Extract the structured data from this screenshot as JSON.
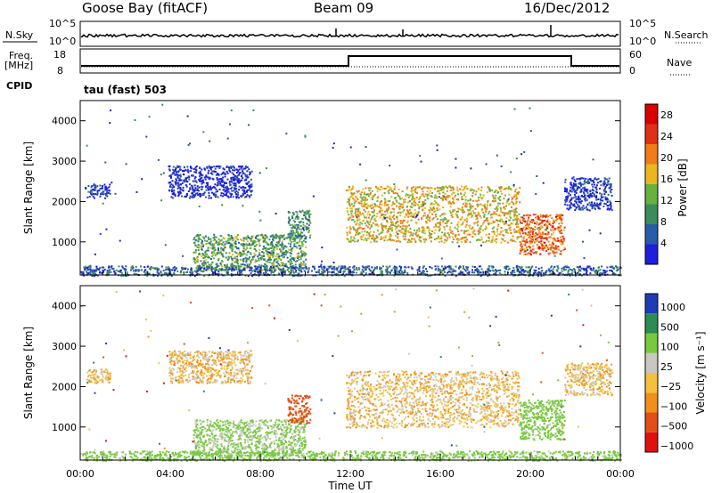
{
  "header": {
    "station": "Goose Bay (fitACF)",
    "beam": "Beam 09",
    "date": "16/Dec/2012"
  },
  "panels": {
    "nsky_label": "N.Sky",
    "nsky_ticks": [
      "10^5",
      "10^0"
    ],
    "nsearch_label": "N.Search",
    "nsearch_ticks": [
      "10^5",
      "10^0"
    ],
    "freq_label_1": "Freq.",
    "freq_label_2": "[MHz]",
    "freq_ticks": [
      "18",
      "8"
    ],
    "nave_label": "Nave",
    "nave_ticks": [
      "60",
      "0"
    ],
    "cpid_label": "CPID",
    "cpid_value": "tau (fast) 503"
  },
  "colors": {
    "power": [
      "#1e1edc",
      "#2a5aa8",
      "#3b8c5a",
      "#68b040",
      "#e8b81e",
      "#f07c1a",
      "#e03018",
      "#d80000"
    ],
    "velocity": [
      "#e01010",
      "#e05018",
      "#f0901c",
      "#f4c040",
      "#c8c8c0",
      "#78c840",
      "#2c8c54",
      "#1e3cb4"
    ]
  },
  "chart_data": [
    {
      "type": "heatmap",
      "title": "",
      "xlabel": "Time UT",
      "ylabel": "Slant Range [km]",
      "xticks": [
        "00:00",
        "04:00",
        "08:00",
        "12:00",
        "16:00",
        "20:00",
        "00:00"
      ],
      "yticks": [
        1000,
        2000,
        3000,
        4000
      ],
      "xlim_hours": [
        0,
        24
      ],
      "ylim_km": [
        180,
        4500
      ],
      "colorbar": {
        "label": "Power [dB]",
        "ticks": [
          "4",
          "8",
          "12",
          "16",
          "20",
          "24",
          "28"
        ],
        "range": [
          0,
          30
        ]
      },
      "regions": [
        {
          "t0": 0.2,
          "t1": 1.3,
          "r0": 2100,
          "r1": 2450,
          "level": 3
        },
        {
          "t0": 3.9,
          "t1": 7.6,
          "r0": 2100,
          "r1": 2900,
          "level": 2
        },
        {
          "t0": 5.0,
          "t1": 10.0,
          "r0": 300,
          "r1": 1200,
          "level": 11
        },
        {
          "t0": 9.2,
          "t1": 10.2,
          "r0": 1100,
          "r1": 1800,
          "level": 9
        },
        {
          "t0": 11.8,
          "t1": 19.5,
          "r0": 1000,
          "r1": 2400,
          "level": 17
        },
        {
          "t0": 19.5,
          "t1": 21.5,
          "r0": 700,
          "r1": 1700,
          "level": 22
        },
        {
          "t0": 21.5,
          "t1": 23.6,
          "r0": 1800,
          "r1": 2600,
          "level": 3
        },
        {
          "t0": 0.0,
          "t1": 24.0,
          "r0": 180,
          "r1": 420,
          "level": 6
        }
      ]
    },
    {
      "type": "heatmap",
      "title": "",
      "xlabel": "Time UT",
      "ylabel": "Slant Range [km]",
      "xticks": [
        "00:00",
        "04:00",
        "08:00",
        "12:00",
        "16:00",
        "20:00",
        "00:00"
      ],
      "yticks": [
        1000,
        2000,
        3000,
        4000
      ],
      "xlim_hours": [
        0,
        24
      ],
      "ylim_km": [
        180,
        4500
      ],
      "colorbar": {
        "label": "Velocity [m s⁻¹]",
        "ticks": [
          "1000",
          "500",
          "100",
          "25",
          "−25",
          "−100",
          "−500",
          "−1000"
        ]
      },
      "regions": [
        {
          "t0": 0.2,
          "t1": 1.3,
          "r0": 2100,
          "r1": 2450,
          "v": 0
        },
        {
          "t0": 3.9,
          "t1": 7.6,
          "r0": 2100,
          "r1": 2900,
          "v": 0
        },
        {
          "t0": 5.0,
          "t1": 10.0,
          "r0": 300,
          "r1": 1200,
          "v": 120
        },
        {
          "t0": 9.2,
          "t1": 10.2,
          "r0": 1100,
          "r1": 1800,
          "v": -150
        },
        {
          "t0": 11.8,
          "t1": 19.5,
          "r0": 1000,
          "r1": 2400,
          "v": 0
        },
        {
          "t0": 19.5,
          "t1": 21.5,
          "r0": 700,
          "r1": 1700,
          "v": 150
        },
        {
          "t0": 21.5,
          "t1": 23.6,
          "r0": 1800,
          "r1": 2600,
          "v": 0
        },
        {
          "t0": 0.0,
          "t1": 24.0,
          "r0": 180,
          "r1": 420,
          "v": 150
        }
      ]
    }
  ]
}
